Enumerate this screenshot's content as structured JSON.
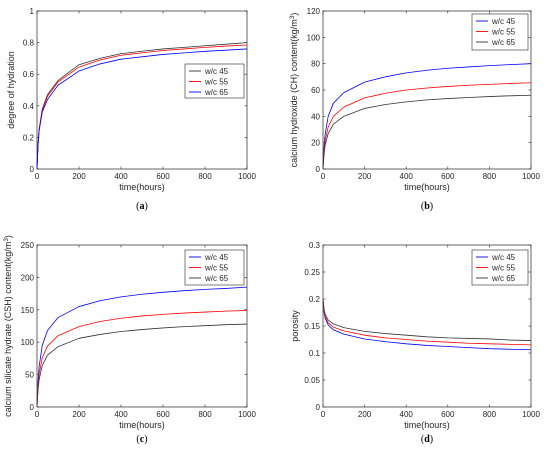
{
  "chart_data": [
    {
      "type": "line",
      "panel_label": "(a)",
      "xlabel": "time(hours)",
      "ylabel": "degree of hydration",
      "xlim": [
        0,
        1000
      ],
      "ylim": [
        0,
        1
      ],
      "xticks": [
        0,
        200,
        400,
        600,
        800,
        1000
      ],
      "yticks": [
        0,
        0.2,
        0.4,
        0.6,
        0.8,
        1
      ],
      "ytick_labels": [
        "0",
        "0.2",
        "0.4",
        "0.6",
        "0.8",
        "1"
      ],
      "legend_position": "right-middle",
      "grid": false,
      "x": [
        0,
        5,
        10,
        25,
        50,
        100,
        200,
        300,
        400,
        500,
        600,
        700,
        800,
        900,
        1000
      ],
      "series": [
        {
          "name": "w/c 45",
          "color": "#333333",
          "values": [
            0,
            0.16,
            0.25,
            0.38,
            0.47,
            0.56,
            0.66,
            0.7,
            0.73,
            0.745,
            0.76,
            0.77,
            0.78,
            0.79,
            0.8
          ]
        },
        {
          "name": "w/c 55",
          "color": "#ff0000",
          "values": [
            0,
            0.16,
            0.25,
            0.37,
            0.46,
            0.55,
            0.645,
            0.69,
            0.72,
            0.735,
            0.75,
            0.76,
            0.77,
            0.778,
            0.785
          ]
        },
        {
          "name": "w/c 65",
          "color": "#0000ff",
          "values": [
            0,
            0.15,
            0.24,
            0.36,
            0.44,
            0.53,
            0.62,
            0.665,
            0.695,
            0.71,
            0.725,
            0.735,
            0.745,
            0.752,
            0.76
          ]
        }
      ]
    },
    {
      "type": "line",
      "panel_label": "(b)",
      "xlabel": "time(hours)",
      "ylabel": "calcium hydroxide (CH) content(kg/m^3)",
      "xlim": [
        0,
        1000
      ],
      "ylim": [
        0,
        120
      ],
      "xticks": [
        0,
        200,
        400,
        600,
        800,
        1000
      ],
      "yticks": [
        0,
        20,
        40,
        60,
        80,
        100,
        120
      ],
      "ytick_labels": [
        "0",
        "20",
        "40",
        "60",
        "80",
        "100",
        "120"
      ],
      "legend_position": "top-right",
      "grid": false,
      "x": [
        0,
        5,
        10,
        25,
        50,
        100,
        200,
        300,
        400,
        500,
        600,
        700,
        800,
        900,
        1000
      ],
      "series": [
        {
          "name": "w/c 45",
          "color": "#0000ff",
          "values": [
            0,
            17,
            26,
            40,
            50,
            58,
            66,
            70,
            73,
            75,
            76.5,
            77.5,
            78.5,
            79.3,
            80
          ]
        },
        {
          "name": "w/c 55",
          "color": "#ff0000",
          "values": [
            0,
            13,
            21,
            32,
            40,
            47,
            54,
            57.5,
            60,
            61.5,
            62.7,
            63.6,
            64.3,
            65,
            65.5
          ]
        },
        {
          "name": "w/c 65",
          "color": "#333333",
          "values": [
            0,
            11,
            18,
            27,
            34,
            40,
            46,
            49,
            51,
            52.5,
            53.5,
            54.3,
            55,
            55.6,
            56
          ]
        }
      ]
    },
    {
      "type": "line",
      "panel_label": "(c)",
      "xlabel": "time(hours)",
      "ylabel": "calcium silicate hydrate (CSH) content(kg/m^3)",
      "xlim": [
        0,
        1000
      ],
      "ylim": [
        0,
        250
      ],
      "xticks": [
        0,
        200,
        400,
        600,
        800,
        1000
      ],
      "yticks": [
        0,
        50,
        100,
        150,
        200,
        250
      ],
      "ytick_labels": [
        "0",
        "50",
        "100",
        "150",
        "200",
        "250"
      ],
      "legend_position": "top-right",
      "grid": false,
      "x": [
        0,
        5,
        10,
        25,
        50,
        100,
        200,
        300,
        400,
        500,
        600,
        700,
        800,
        900,
        1000
      ],
      "series": [
        {
          "name": "w/c 45",
          "color": "#0000ff",
          "values": [
            0,
            40,
            62,
            95,
            118,
            138,
            155,
            164,
            170,
            174,
            177,
            179.5,
            181.5,
            183,
            185
          ]
        },
        {
          "name": "w/c 55",
          "color": "#ff0000",
          "values": [
            0,
            32,
            50,
            76,
            94,
            110,
            124,
            132,
            137,
            140.5,
            143,
            145,
            146.5,
            148,
            149
          ]
        },
        {
          "name": "w/c 65",
          "color": "#333333",
          "values": [
            0,
            27,
            42,
            64,
            80,
            93,
            106,
            112,
            116.5,
            119.5,
            122,
            124,
            125.5,
            127,
            128
          ]
        }
      ]
    },
    {
      "type": "line",
      "panel_label": "(d)",
      "xlabel": "time(hours)",
      "ylabel": "porosity",
      "xlim": [
        0,
        1000
      ],
      "ylim": [
        0,
        0.3
      ],
      "xticks": [
        0,
        200,
        400,
        600,
        800,
        1000
      ],
      "yticks": [
        0,
        0.05,
        0.1,
        0.15,
        0.2,
        0.25,
        0.3
      ],
      "ytick_labels": [
        "0",
        "0.05",
        "0.1",
        "0.15",
        "0.2",
        "0.25",
        "0.3"
      ],
      "legend_position": "top-right",
      "grid": false,
      "x": [
        0,
        5,
        10,
        25,
        50,
        100,
        200,
        300,
        400,
        500,
        600,
        700,
        800,
        900,
        1000
      ],
      "series": [
        {
          "name": "w/c 45",
          "color": "#0000ff",
          "values": [
            0.2,
            0.175,
            0.165,
            0.152,
            0.143,
            0.135,
            0.126,
            0.121,
            0.117,
            0.114,
            0.112,
            0.11,
            0.108,
            0.107,
            0.106
          ]
        },
        {
          "name": "w/c 55",
          "color": "#ff0000",
          "values": [
            0.2,
            0.178,
            0.168,
            0.156,
            0.148,
            0.141,
            0.133,
            0.128,
            0.125,
            0.122,
            0.12,
            0.118,
            0.117,
            0.116,
            0.115
          ]
        },
        {
          "name": "w/c 65",
          "color": "#333333",
          "values": [
            0.2,
            0.181,
            0.172,
            0.161,
            0.154,
            0.147,
            0.14,
            0.136,
            0.133,
            0.13,
            0.128,
            0.127,
            0.126,
            0.124,
            0.123
          ]
        }
      ]
    }
  ]
}
